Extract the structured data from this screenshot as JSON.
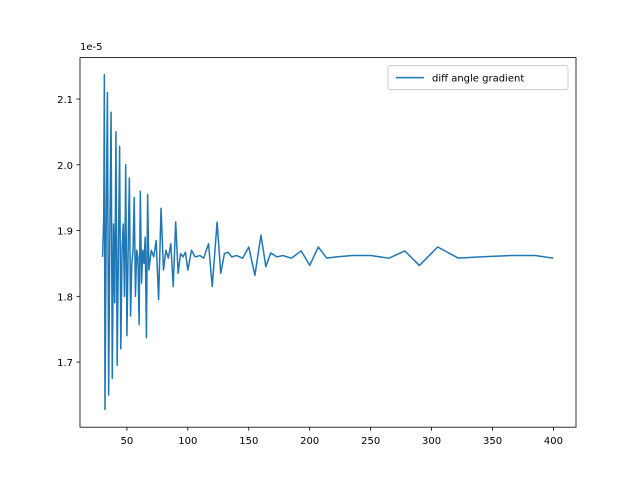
{
  "chart_data": {
    "type": "line",
    "offset_label": "1e-5",
    "legend": "upper right",
    "x": [
      30,
      31,
      31.5,
      32,
      33,
      34,
      35,
      36,
      37,
      38,
      39,
      40,
      41,
      42,
      43,
      44,
      45,
      46,
      47,
      48,
      49,
      50,
      51,
      52,
      53,
      54,
      55,
      56,
      57,
      58,
      59,
      60,
      61,
      62,
      63,
      64,
      65,
      66,
      67,
      68,
      70,
      72,
      74,
      76,
      78,
      80,
      82,
      84,
      86,
      88,
      90,
      92,
      94,
      96,
      98,
      100,
      103,
      106,
      110,
      113,
      117,
      120,
      124,
      127,
      130,
      133,
      136,
      140,
      145,
      150,
      155,
      160,
      164,
      168,
      173,
      178,
      185,
      193,
      200,
      207,
      214,
      222,
      235,
      250,
      265,
      278,
      290,
      305,
      322,
      340,
      365,
      385,
      400
    ],
    "series": [
      {
        "name": "diff angle gradient",
        "color": "#1f77b4",
        "values": [
          1.86,
          1.92,
          2.137,
          1.628,
          1.91,
          2.11,
          1.65,
          1.9,
          2.08,
          1.675,
          1.91,
          1.79,
          2.05,
          1.695,
          1.87,
          2.028,
          1.72,
          1.87,
          1.91,
          1.8,
          2.0,
          1.74,
          1.87,
          1.98,
          1.77,
          1.85,
          1.87,
          1.95,
          1.8,
          1.87,
          1.86,
          1.757,
          1.96,
          1.82,
          1.87,
          1.85,
          1.89,
          1.737,
          1.955,
          1.84,
          1.87,
          1.86,
          1.885,
          1.795,
          1.934,
          1.84,
          1.87,
          1.858,
          1.88,
          1.815,
          1.913,
          1.835,
          1.865,
          1.86,
          1.867,
          1.84,
          1.87,
          1.86,
          1.862,
          1.858,
          1.88,
          1.815,
          1.913,
          1.835,
          1.865,
          1.867,
          1.86,
          1.862,
          1.858,
          1.875,
          1.832,
          1.893,
          1.845,
          1.866,
          1.86,
          1.862,
          1.858,
          1.869,
          1.847,
          1.875,
          1.858,
          1.86,
          1.862,
          1.862,
          1.858,
          1.869,
          1.847,
          1.875,
          1.858,
          1.86,
          1.862,
          1.862,
          1.858
        ]
      }
    ],
    "xlim": [
      11.5,
      418.5
    ],
    "xticks": [
      50,
      100,
      150,
      200,
      250,
      300,
      350,
      400
    ],
    "ylim": [
      1.601,
      2.163
    ],
    "yticks": [
      1.7,
      1.8,
      1.9,
      {
        "value": 2.0,
        "label": "2.0"
      },
      2.1
    ]
  }
}
